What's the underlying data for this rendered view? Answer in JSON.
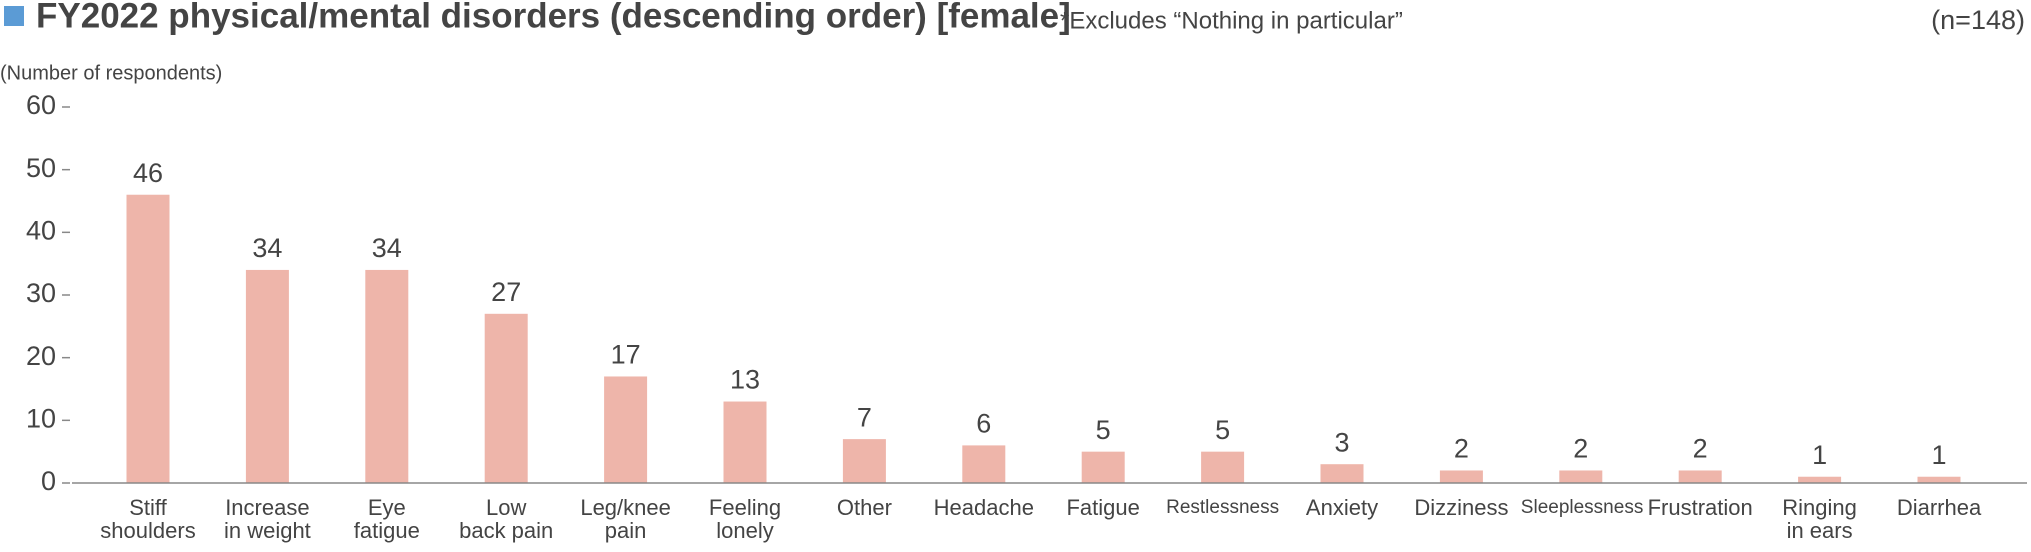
{
  "chart_data": {
    "type": "bar",
    "title": "FY2022 physical/mental disorders (descending order) [female]",
    "subtitle": "*Excludes “Nothing in particular”",
    "note": "(n=148)",
    "y_label": "(Number of respondents)",
    "categories": [
      "Stiff\nshoulders",
      "Increase\nin weight",
      "Eye\nfatigue",
      "Low\nback pain",
      "Leg/knee\npain",
      "Feeling\nlonely",
      "Other",
      "Headache",
      "Fatigue",
      "Restlessness",
      "Anxiety",
      "Dizziness",
      "Sleeplessness",
      "Frustration",
      "Ringing\nin ears",
      "Diarrhea"
    ],
    "values": [
      46,
      34,
      34,
      27,
      17,
      13,
      7,
      6,
      5,
      5,
      3,
      2,
      2,
      2,
      1,
      1
    ],
    "color": "#eeb5aa",
    "ylim": [
      0,
      60
    ],
    "yticks": [
      0,
      10,
      20,
      30,
      40,
      50,
      60
    ],
    "grid": false
  }
}
